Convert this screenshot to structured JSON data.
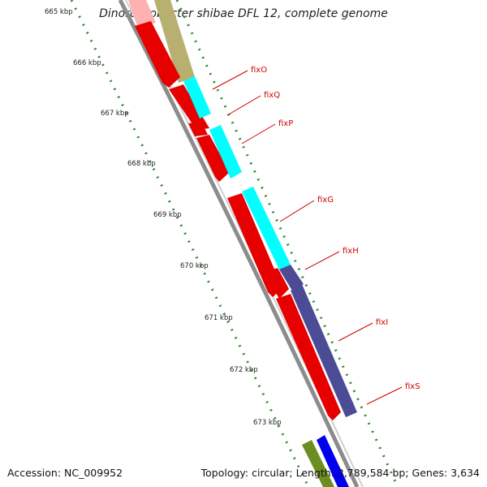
{
  "title": "Dinoroseobacter shibae DFL 12, complete genome",
  "accession_text": "Accession: NC_009952",
  "summary_text": "Topology: circular; Length: 3,789,584 bp; Genes: 3,634",
  "ticks": [
    "665 kbp",
    "666 kbp",
    "667 kbp",
    "668 kbp",
    "669 kbp",
    "670 kbp",
    "671 kbp",
    "672 kbp",
    "673 kbp"
  ],
  "gene_labels": [
    "fixO",
    "fixQ",
    "fixP",
    "fixG",
    "fixH",
    "fixI",
    "fixS"
  ],
  "colors": {
    "forward_gene": "#ff0000",
    "cyan_cog": "#00ffff",
    "navy_cog": "#4b4b96",
    "olive_cog": "#b8b070",
    "green_cog": "#6b8e23",
    "blue_cog": "#0000ee",
    "backbone": "#999999",
    "tick_marks": "#2e8b2e",
    "label": "#cc0000"
  }
}
